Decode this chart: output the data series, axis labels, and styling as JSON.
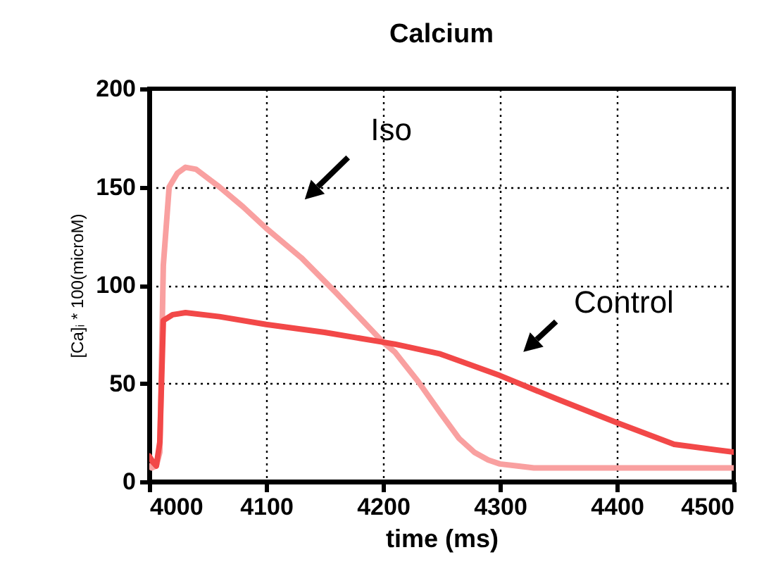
{
  "chart_data": {
    "type": "line",
    "title": "Calcium",
    "xlabel": "time (ms)",
    "ylabel": "[Ca]ᵢ * 100(microM)",
    "xlim": [
      4000,
      4500
    ],
    "xticks": [
      4000,
      4100,
      4200,
      4300,
      4400,
      4500
    ],
    "ylim": [
      0,
      200
    ],
    "yticks": [
      0,
      50,
      100,
      150,
      200
    ],
    "grid": true,
    "legend": false,
    "marker": "none",
    "line_style": "solid",
    "series": [
      {
        "name": "Iso",
        "color": "#f9a0a0",
        "x": [
          4000,
          4002,
          4006,
          4009,
          4012,
          4017,
          4024,
          4031,
          4040,
          4060,
          4080,
          4100,
          4130,
          4160,
          4200,
          4210,
          4230,
          4249,
          4265,
          4278,
          4290,
          4300,
          4315,
          4329,
          4400,
          4500
        ],
        "values": [
          8,
          7,
          8,
          15,
          110,
          150,
          157,
          160,
          159,
          150,
          140,
          129,
          114,
          96,
          71,
          66,
          51,
          35,
          22,
          15,
          11,
          9,
          8,
          7,
          7,
          7
        ]
      },
      {
        "name": "Control",
        "color": "#f24848",
        "x": [
          4000,
          4003,
          4006,
          4009,
          4012,
          4020,
          4031,
          4060,
          4100,
          4150,
          4200,
          4210,
          4249,
          4300,
          4349,
          4400,
          4449,
          4500
        ],
        "values": [
          13,
          10,
          8,
          20,
          82,
          85,
          86,
          84,
          80,
          76,
          71,
          70,
          65,
          54,
          42,
          30,
          19,
          15
        ]
      }
    ]
  }
}
